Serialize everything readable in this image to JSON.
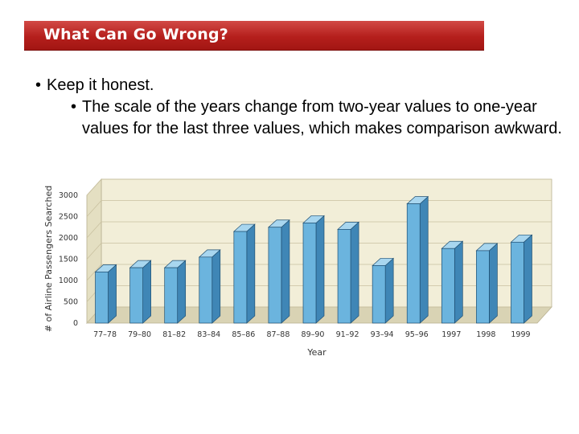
{
  "header": {
    "title": "What Can Go Wrong?"
  },
  "bullets": {
    "main": "Keep it honest.",
    "sub": "The scale of the years change from two-year values to one-year values for the last three values, which makes comparison awkward."
  },
  "colors": {
    "banner": "#b51f1c",
    "bar_front": "#6bb4de",
    "bar_side": "#3f86b6",
    "bar_top": "#a8d6ef",
    "plot_back": "#f2eed8",
    "plot_floor": "#d9d3b4"
  },
  "chart_data": {
    "type": "bar",
    "categories": [
      "77–78",
      "79–80",
      "81–82",
      "83–84",
      "85–86",
      "87–88",
      "89–90",
      "91–92",
      "93–94",
      "95–96",
      "1997",
      "1998",
      "1999"
    ],
    "values": [
      1200,
      1300,
      1300,
      1550,
      2150,
      2250,
      2350,
      2200,
      1350,
      2800,
      1750,
      1700,
      1900
    ],
    "xlabel": "Year",
    "ylabel": "# of Airline Passengers Searched",
    "yticks": [
      "0",
      "500",
      "1000",
      "1500",
      "2000",
      "2500",
      "3000"
    ],
    "ylim": [
      0,
      3000
    ],
    "grid": true
  }
}
